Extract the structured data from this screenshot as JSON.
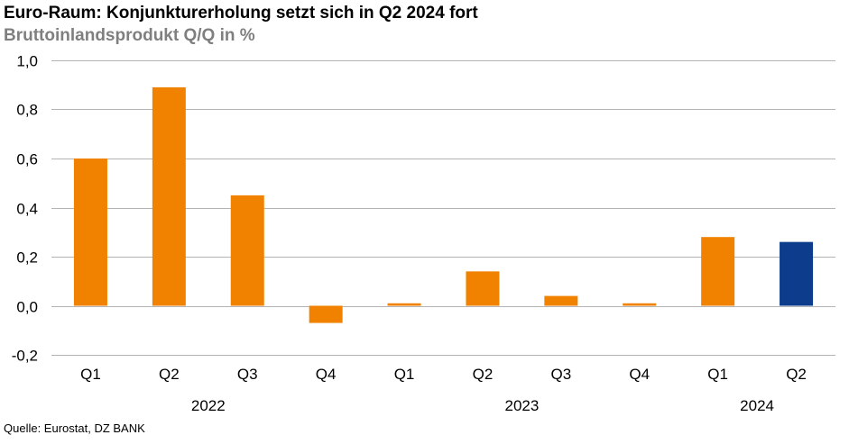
{
  "title": "Euro-Raum: Konjunkturerholung setzt sich in Q2 2024 fort",
  "subtitle": "Bruttoinlandsprodukt Q/Q in %",
  "source": "Quelle: Eurostat, DZ BANK",
  "colors": {
    "actual": "#f08200",
    "highlight": "#0d3c8c",
    "grid": "#b4b4b4"
  },
  "chart_data": {
    "type": "bar",
    "title": "Euro-Raum: Konjunkturerholung setzt sich in Q2 2024 fort",
    "subtitle": "Bruttoinlandsprodukt Q/Q in %",
    "categories": [
      "Q1",
      "Q2",
      "Q3",
      "Q4",
      "Q1",
      "Q2",
      "Q3",
      "Q4",
      "Q1",
      "Q2"
    ],
    "year_groups": [
      {
        "label": "2022",
        "span": 4
      },
      {
        "label": "2023",
        "span": 4
      },
      {
        "label": "2024",
        "span": 2
      }
    ],
    "values": [
      0.6,
      0.89,
      0.45,
      -0.07,
      0.01,
      0.14,
      0.04,
      0.01,
      0.28,
      0.26
    ],
    "highlight_index": 9,
    "ylim": [
      -0.2,
      1.0
    ],
    "yticks": [
      1.0,
      0.8,
      0.6,
      0.4,
      0.2,
      0.0,
      -0.2
    ],
    "ytick_labels": [
      "1,0",
      "0,8",
      "0,6",
      "0,4",
      "0,2",
      "0,0",
      "-0,2"
    ],
    "grid": true,
    "legend": "none"
  }
}
